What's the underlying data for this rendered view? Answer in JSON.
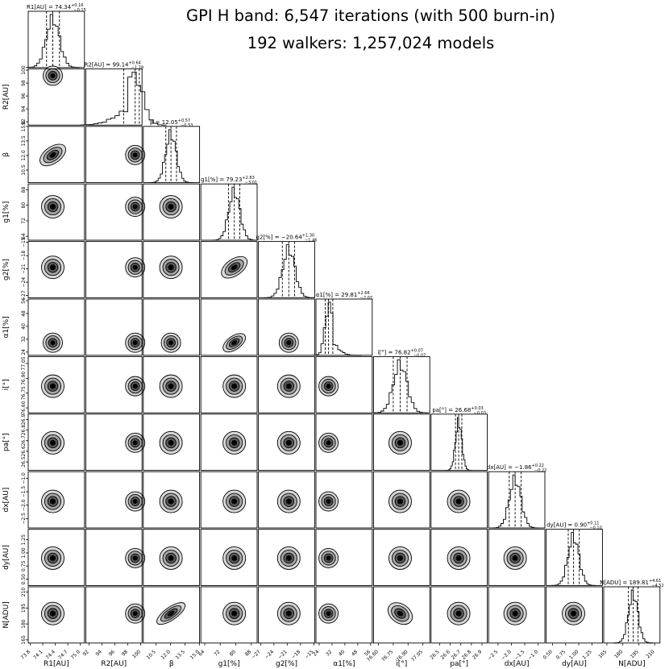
{
  "figure": {
    "title_line1": "GPI H band: 6,547 iterations (with 500 burn-in)",
    "title_line2": "192 walkers: 1,257,024 models"
  },
  "chart_data": {
    "type": "corner",
    "grid": false,
    "contour_levels": 3,
    "params": [
      {
        "label": "R1[AU]",
        "title_name": "R1[AU]",
        "median": "74.34",
        "plus": "0.16",
        "minus": "0.15",
        "lim": [
          73.75,
          75.1
        ],
        "ticks": [
          "73.8",
          "74.1",
          "74.4",
          "74.7",
          "75.0"
        ],
        "hist_mean": 74.34,
        "hist_sd": 0.16,
        "skew": 0
      },
      {
        "label": "R2[AU]",
        "title_name": "R2[AU]",
        "median": "99.14",
        "plus": "0.64",
        "minus": "1.78",
        "lim": [
          91.5,
          100.2
        ],
        "ticks": [
          "92",
          "94",
          "96",
          "98",
          "100"
        ],
        "hist_mean": 99.14,
        "hist_sd": 1.2,
        "skew": -1
      },
      {
        "label": "β",
        "title_name": "β",
        "median": "12.05",
        "plus": "0.57",
        "minus": "0.53",
        "lim": [
          9.2,
          15.0
        ],
        "ticks": [
          "10.5",
          "12.0",
          "13.5",
          "15.0"
        ],
        "hist_mean": 12.05,
        "hist_sd": 0.55,
        "skew": 0
      },
      {
        "label": "g1[%]",
        "title_name": "g1[%]",
        "median": "79.23",
        "plus": "2.83",
        "minus": "3.01",
        "lim": [
          62,
          91
        ],
        "ticks": [
          "64",
          "72",
          "80",
          "88"
        ],
        "hist_mean": 79.23,
        "hist_sd": 2.9,
        "skew": 0
      },
      {
        "label": "g2[%]",
        "title_name": "g2[%]",
        "median": "−20.64",
        "plus": "1.30",
        "minus": "1.46",
        "lim": [
          -27.5,
          -14.8
        ],
        "ticks": [
          "−27",
          "−24",
          "−21",
          "−18",
          "−15"
        ],
        "hist_mean": -20.64,
        "hist_sd": 1.4,
        "skew": 0
      },
      {
        "label": "α1[%]",
        "title_name": "α1[%]",
        "median": "29.81",
        "plus": "2.66",
        "minus": "2.07",
        "lim": [
          22,
          57
        ],
        "ticks": [
          "24",
          "32",
          "40",
          "48",
          "56"
        ],
        "hist_mean": 29.81,
        "hist_sd": 2.3,
        "skew": 1
      },
      {
        "label": "i[°]",
        "title_name": "i[°]",
        "median": "76.82",
        "plus": "0.07",
        "minus": "0.07",
        "lim": [
          76.55,
          77.12
        ],
        "ticks": [
          "76.60",
          "76.75",
          "76.90",
          "77.05"
        ],
        "hist_mean": 76.82,
        "hist_sd": 0.07,
        "skew": 0
      },
      {
        "label": "pa[°]",
        "title_name": "pa[°]",
        "median": "26.68",
        "plus": "0.03",
        "minus": "0.03",
        "lim": [
          26.42,
          26.95
        ],
        "ticks": [
          "26.5",
          "26.6",
          "26.7",
          "26.8",
          "26.9"
        ],
        "hist_mean": 26.68,
        "hist_sd": 0.03,
        "skew": 0
      },
      {
        "label": "dx[AU]",
        "title_name": "dx[AU]",
        "median": "−1.86",
        "plus": "0.22",
        "minus": "0.22",
        "lim": [
          -2.85,
          -0.75
        ],
        "ticks": [
          "−2.5",
          "−2.0",
          "−1.5",
          "−1.0"
        ],
        "hist_mean": -1.86,
        "hist_sd": 0.22,
        "skew": 0
      },
      {
        "label": "dy[AU]",
        "title_name": "dy[AU]",
        "median": "0.90",
        "plus": "0.11",
        "minus": "0.10",
        "lim": [
          0.38,
          1.45
        ],
        "ticks": [
          "0.50",
          "0.75",
          "1.00",
          "1.25"
        ],
        "hist_mean": 0.9,
        "hist_sd": 0.105,
        "skew": 0
      },
      {
        "label": "N[ADU]",
        "title_name": "N[ADU]",
        "median": "189.81",
        "plus": "4.61",
        "minus": "4.52",
        "lim": [
          162,
          215
        ],
        "ticks": [
          "165",
          "180",
          "195",
          "210"
        ],
        "hist_mean": 189.81,
        "hist_sd": 4.55,
        "skew": 0
      }
    ],
    "correlations": [
      {
        "pair": [
          "R1[AU]",
          "β"
        ],
        "rho": 0.5
      },
      {
        "pair": [
          "β",
          "N[ADU]"
        ],
        "rho": 0.8
      },
      {
        "pair": [
          "g1[%]",
          "g2[%]"
        ],
        "rho": 0.5
      },
      {
        "pair": [
          "g1[%]",
          "α1[%]"
        ],
        "rho": 0.55
      },
      {
        "pair": [
          "i[°]",
          "N[ADU]"
        ],
        "rho": -0.3
      }
    ]
  }
}
